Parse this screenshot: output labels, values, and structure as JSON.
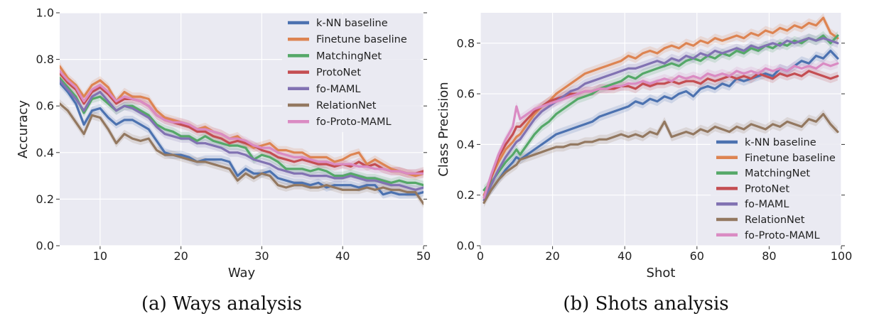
{
  "captions": {
    "a": "(a)  Ways analysis",
    "b": "(b)  Shots analysis"
  },
  "chart_data": [
    {
      "type": "line",
      "xlabel": "Way",
      "ylabel": "Accuracy",
      "xlim": [
        5,
        50
      ],
      "ylim": [
        0.0,
        1.0
      ],
      "xticks": [
        "10",
        "20",
        "30",
        "40",
        "50"
      ],
      "yticks": [
        "0.0",
        "0.2",
        "0.4",
        "0.6",
        "0.8",
        "1.0"
      ],
      "grid": true,
      "legend_position": "top-right",
      "x": [
        5,
        6,
        7,
        8,
        9,
        10,
        11,
        12,
        13,
        14,
        15,
        16,
        17,
        18,
        19,
        20,
        21,
        22,
        23,
        24,
        25,
        26,
        27,
        28,
        29,
        30,
        31,
        32,
        33,
        34,
        35,
        36,
        37,
        38,
        39,
        40,
        41,
        42,
        43,
        44,
        45,
        46,
        47,
        48,
        49,
        50
      ],
      "series": [
        {
          "name": "k-NN baseline",
          "color": "#4c72b0",
          "values": [
            0.7,
            0.66,
            0.61,
            0.52,
            0.58,
            0.59,
            0.55,
            0.52,
            0.54,
            0.54,
            0.52,
            0.5,
            0.45,
            0.4,
            0.39,
            0.39,
            0.38,
            0.36,
            0.37,
            0.37,
            0.37,
            0.36,
            0.3,
            0.33,
            0.31,
            0.31,
            0.32,
            0.29,
            0.28,
            0.27,
            0.27,
            0.26,
            0.27,
            0.25,
            0.26,
            0.26,
            0.26,
            0.25,
            0.26,
            0.26,
            0.22,
            0.23,
            0.22,
            0.22,
            0.22,
            0.23
          ]
        },
        {
          "name": "Finetune baseline",
          "color": "#dd8452",
          "values": [
            0.77,
            0.72,
            0.69,
            0.64,
            0.69,
            0.71,
            0.68,
            0.62,
            0.66,
            0.64,
            0.64,
            0.63,
            0.58,
            0.55,
            0.54,
            0.53,
            0.52,
            0.5,
            0.51,
            0.49,
            0.48,
            0.46,
            0.47,
            0.44,
            0.42,
            0.43,
            0.44,
            0.41,
            0.41,
            0.4,
            0.4,
            0.38,
            0.38,
            0.38,
            0.36,
            0.37,
            0.39,
            0.4,
            0.35,
            0.37,
            0.35,
            0.33,
            0.32,
            0.31,
            0.3,
            0.31
          ]
        },
        {
          "name": "MatchingNet",
          "color": "#55a868",
          "values": [
            0.72,
            0.68,
            0.64,
            0.57,
            0.63,
            0.64,
            0.61,
            0.58,
            0.6,
            0.6,
            0.58,
            0.56,
            0.52,
            0.5,
            0.49,
            0.47,
            0.47,
            0.45,
            0.47,
            0.45,
            0.44,
            0.43,
            0.43,
            0.42,
            0.37,
            0.39,
            0.38,
            0.36,
            0.33,
            0.33,
            0.33,
            0.32,
            0.33,
            0.32,
            0.3,
            0.3,
            0.31,
            0.3,
            0.29,
            0.29,
            0.28,
            0.27,
            0.28,
            0.27,
            0.27,
            0.26
          ]
        },
        {
          "name": "ProtoNet",
          "color": "#c44e52",
          "values": [
            0.74,
            0.7,
            0.67,
            0.61,
            0.66,
            0.68,
            0.65,
            0.61,
            0.63,
            0.63,
            0.62,
            0.6,
            0.56,
            0.54,
            0.53,
            0.52,
            0.51,
            0.49,
            0.49,
            0.47,
            0.46,
            0.44,
            0.45,
            0.44,
            0.43,
            0.41,
            0.4,
            0.38,
            0.37,
            0.36,
            0.37,
            0.36,
            0.35,
            0.35,
            0.34,
            0.35,
            0.34,
            0.36,
            0.34,
            0.35,
            0.33,
            0.32,
            0.32,
            0.31,
            0.31,
            0.32
          ]
        },
        {
          "name": "fo-MAML",
          "color": "#8172b2",
          "values": [
            0.71,
            0.67,
            0.63,
            0.58,
            0.64,
            0.66,
            0.62,
            0.58,
            0.6,
            0.59,
            0.57,
            0.55,
            0.51,
            0.48,
            0.47,
            0.46,
            0.46,
            0.44,
            0.44,
            0.43,
            0.42,
            0.4,
            0.4,
            0.39,
            0.37,
            0.36,
            0.35,
            0.33,
            0.32,
            0.31,
            0.31,
            0.3,
            0.3,
            0.3,
            0.29,
            0.29,
            0.3,
            0.29,
            0.28,
            0.28,
            0.27,
            0.26,
            0.26,
            0.25,
            0.24,
            0.25
          ]
        },
        {
          "name": "RelationNet",
          "color": "#937860",
          "values": [
            0.61,
            0.58,
            0.53,
            0.48,
            0.56,
            0.55,
            0.5,
            0.44,
            0.48,
            0.46,
            0.45,
            0.46,
            0.41,
            0.39,
            0.39,
            0.38,
            0.37,
            0.36,
            0.36,
            0.35,
            0.34,
            0.33,
            0.28,
            0.31,
            0.29,
            0.31,
            0.3,
            0.26,
            0.25,
            0.26,
            0.26,
            0.25,
            0.25,
            0.26,
            0.25,
            0.24,
            0.24,
            0.24,
            0.25,
            0.24,
            0.25,
            0.24,
            0.24,
            0.23,
            0.23,
            0.18
          ]
        },
        {
          "name": "fo-Proto-MAML",
          "color": "#da8bc3",
          "values": [
            0.75,
            0.71,
            0.68,
            0.62,
            0.67,
            0.69,
            0.66,
            0.62,
            0.64,
            0.63,
            0.62,
            0.6,
            0.56,
            0.54,
            0.53,
            0.53,
            0.52,
            0.5,
            0.5,
            0.49,
            0.48,
            0.46,
            0.46,
            0.45,
            0.43,
            0.42,
            0.42,
            0.4,
            0.39,
            0.38,
            0.38,
            0.37,
            0.36,
            0.36,
            0.35,
            0.35,
            0.35,
            0.34,
            0.34,
            0.33,
            0.33,
            0.32,
            0.32,
            0.31,
            0.31,
            0.31
          ]
        }
      ]
    },
    {
      "type": "line",
      "xlabel": "Shot",
      "ylabel": "Class Precision",
      "xlim": [
        0,
        100
      ],
      "ylim": [
        0.0,
        0.92
      ],
      "xticks": [
        "0",
        "20",
        "40",
        "60",
        "80",
        "100"
      ],
      "yticks": [
        "0.0",
        "0.2",
        "0.4",
        "0.6",
        "0.8"
      ],
      "grid": true,
      "legend_position": "bottom-right",
      "x": [
        1,
        3,
        5,
        7,
        9,
        10,
        11,
        13,
        15,
        17,
        19,
        21,
        23,
        25,
        27,
        29,
        31,
        33,
        35,
        37,
        39,
        41,
        43,
        45,
        47,
        49,
        51,
        53,
        55,
        57,
        59,
        61,
        63,
        65,
        67,
        69,
        71,
        73,
        75,
        77,
        79,
        81,
        83,
        85,
        87,
        89,
        91,
        93,
        95,
        97,
        99
      ],
      "series": [
        {
          "name": "k-NN baseline",
          "color": "#4c72b0",
          "values": [
            0.2,
            0.22,
            0.26,
            0.3,
            0.33,
            0.35,
            0.34,
            0.36,
            0.38,
            0.4,
            0.42,
            0.44,
            0.45,
            0.46,
            0.47,
            0.48,
            0.49,
            0.51,
            0.52,
            0.53,
            0.54,
            0.55,
            0.57,
            0.56,
            0.58,
            0.57,
            0.59,
            0.58,
            0.6,
            0.61,
            0.59,
            0.62,
            0.63,
            0.62,
            0.64,
            0.63,
            0.66,
            0.65,
            0.66,
            0.67,
            0.68,
            0.67,
            0.7,
            0.69,
            0.71,
            0.73,
            0.72,
            0.75,
            0.74,
            0.77,
            0.74
          ]
        },
        {
          "name": "Finetune baseline",
          "color": "#dd8452",
          "values": [
            0.2,
            0.27,
            0.33,
            0.38,
            0.41,
            0.43,
            0.44,
            0.48,
            0.52,
            0.55,
            0.57,
            0.6,
            0.62,
            0.64,
            0.66,
            0.68,
            0.69,
            0.7,
            0.71,
            0.72,
            0.73,
            0.75,
            0.74,
            0.76,
            0.77,
            0.76,
            0.78,
            0.79,
            0.78,
            0.8,
            0.79,
            0.81,
            0.8,
            0.82,
            0.81,
            0.82,
            0.83,
            0.82,
            0.84,
            0.83,
            0.85,
            0.84,
            0.86,
            0.85,
            0.87,
            0.86,
            0.88,
            0.87,
            0.9,
            0.84,
            0.82
          ]
        },
        {
          "name": "MatchingNet",
          "color": "#55a868",
          "values": [
            0.22,
            0.25,
            0.29,
            0.33,
            0.36,
            0.38,
            0.36,
            0.4,
            0.44,
            0.47,
            0.49,
            0.52,
            0.54,
            0.56,
            0.58,
            0.59,
            0.6,
            0.62,
            0.63,
            0.64,
            0.65,
            0.67,
            0.66,
            0.68,
            0.69,
            0.7,
            0.71,
            0.72,
            0.71,
            0.73,
            0.74,
            0.73,
            0.75,
            0.74,
            0.76,
            0.75,
            0.77,
            0.76,
            0.78,
            0.77,
            0.79,
            0.78,
            0.8,
            0.79,
            0.81,
            0.8,
            0.82,
            0.81,
            0.83,
            0.8,
            0.83
          ]
        },
        {
          "name": "ProtoNet",
          "color": "#c44e52",
          "values": [
            0.19,
            0.27,
            0.35,
            0.4,
            0.44,
            0.47,
            0.47,
            0.5,
            0.53,
            0.55,
            0.57,
            0.58,
            0.59,
            0.6,
            0.6,
            0.61,
            0.61,
            0.62,
            0.62,
            0.62,
            0.63,
            0.63,
            0.62,
            0.64,
            0.63,
            0.64,
            0.64,
            0.65,
            0.64,
            0.65,
            0.65,
            0.64,
            0.66,
            0.65,
            0.66,
            0.67,
            0.66,
            0.67,
            0.66,
            0.68,
            0.67,
            0.66,
            0.68,
            0.67,
            0.68,
            0.67,
            0.69,
            0.68,
            0.67,
            0.66,
            0.67
          ]
        },
        {
          "name": "fo-MAML",
          "color": "#8172b2",
          "values": [
            0.18,
            0.24,
            0.3,
            0.35,
            0.39,
            0.41,
            0.42,
            0.46,
            0.5,
            0.53,
            0.55,
            0.57,
            0.59,
            0.61,
            0.62,
            0.64,
            0.65,
            0.66,
            0.67,
            0.68,
            0.69,
            0.7,
            0.7,
            0.71,
            0.72,
            0.73,
            0.72,
            0.74,
            0.73,
            0.75,
            0.74,
            0.76,
            0.75,
            0.77,
            0.76,
            0.77,
            0.78,
            0.77,
            0.79,
            0.78,
            0.79,
            0.8,
            0.79,
            0.81,
            0.8,
            0.81,
            0.82,
            0.81,
            0.82,
            0.81,
            0.8
          ]
        },
        {
          "name": "RelationNet",
          "color": "#937860",
          "values": [
            0.17,
            0.22,
            0.26,
            0.29,
            0.31,
            0.32,
            0.34,
            0.35,
            0.36,
            0.37,
            0.38,
            0.39,
            0.39,
            0.4,
            0.4,
            0.41,
            0.41,
            0.42,
            0.42,
            0.43,
            0.44,
            0.43,
            0.44,
            0.43,
            0.45,
            0.44,
            0.49,
            0.43,
            0.44,
            0.45,
            0.44,
            0.46,
            0.45,
            0.47,
            0.46,
            0.45,
            0.47,
            0.46,
            0.48,
            0.47,
            0.46,
            0.48,
            0.47,
            0.49,
            0.48,
            0.47,
            0.5,
            0.49,
            0.52,
            0.48,
            0.45
          ]
        },
        {
          "name": "fo-Proto-MAML",
          "color": "#da8bc3",
          "values": [
            0.19,
            0.28,
            0.36,
            0.42,
            0.47,
            0.55,
            0.5,
            0.52,
            0.54,
            0.55,
            0.56,
            0.57,
            0.58,
            0.59,
            0.6,
            0.61,
            0.61,
            0.62,
            0.62,
            0.63,
            0.63,
            0.64,
            0.64,
            0.65,
            0.64,
            0.65,
            0.66,
            0.65,
            0.67,
            0.66,
            0.67,
            0.66,
            0.68,
            0.67,
            0.68,
            0.67,
            0.69,
            0.68,
            0.69,
            0.68,
            0.7,
            0.69,
            0.7,
            0.69,
            0.71,
            0.7,
            0.71,
            0.7,
            0.72,
            0.71,
            0.72
          ]
        }
      ]
    }
  ]
}
